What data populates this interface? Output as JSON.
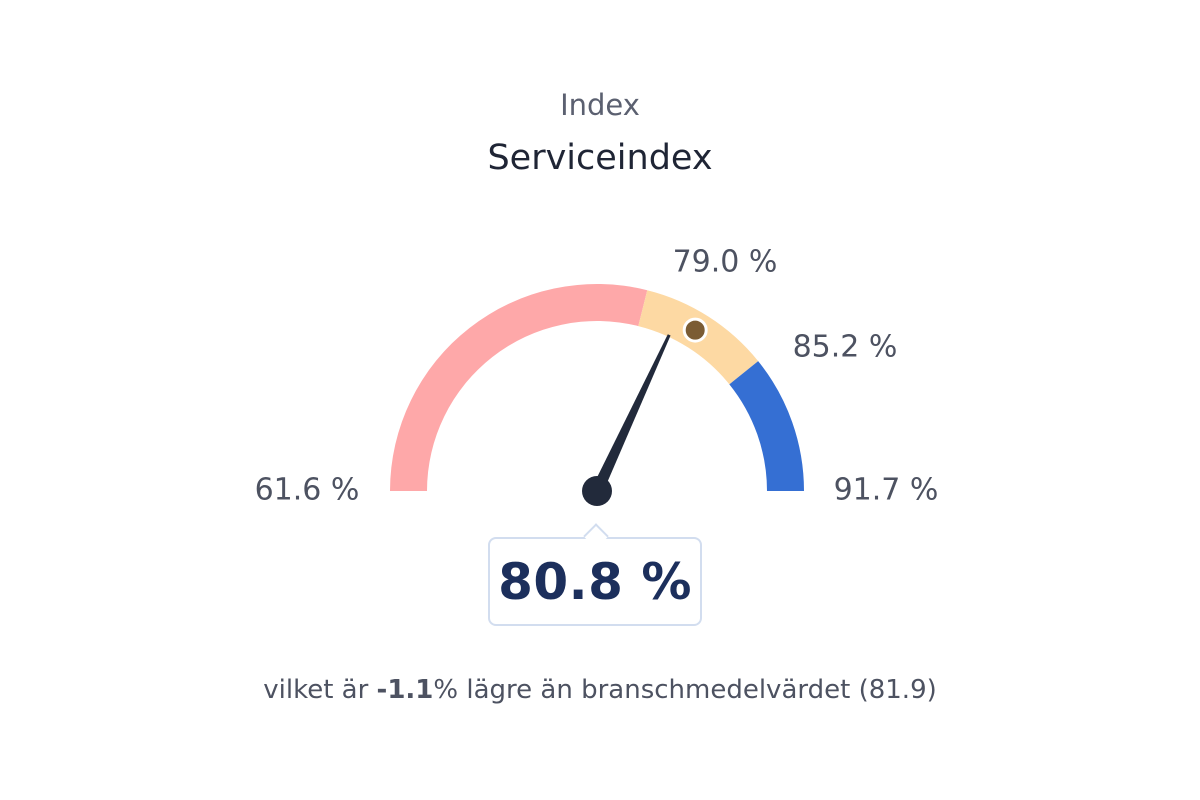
{
  "header": {
    "subtitle": "Index",
    "title": "Serviceindex"
  },
  "chart_data": {
    "type": "gauge",
    "title": "Serviceindex",
    "min": 61.6,
    "max": 91.7,
    "value": 80.8,
    "marker": 81.9,
    "bands": [
      {
        "from": 61.6,
        "to": 79.0,
        "color": "#fea8a9"
      },
      {
        "from": 79.0,
        "to": 85.2,
        "color": "#fdd9a3"
      },
      {
        "from": 85.2,
        "to": 91.7,
        "color": "#356fd3"
      }
    ],
    "threshold_labels": [
      "61.6 %",
      "79.0 %",
      "85.2 %",
      "91.7 %"
    ],
    "value_label": "80.8 %",
    "needle_color": "#222a3b",
    "marker_color": "#7b5c34"
  },
  "comparison": {
    "prefix": "vilket är ",
    "delta": "-1.1",
    "suffix": "% lägre än branschmedelvärdet (81.9)"
  }
}
